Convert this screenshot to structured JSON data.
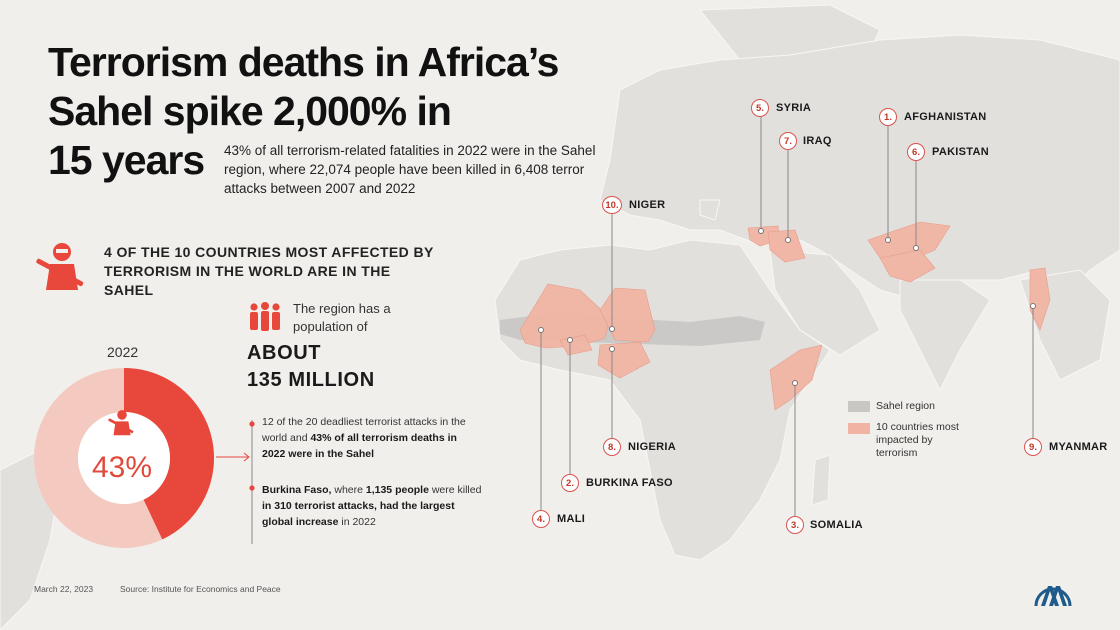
{
  "title": {
    "line1": "Terrorism deaths in Africa’s",
    "line2": "Sahel spike 2,000% in",
    "line3": "15 years"
  },
  "subtitle": "43% of all terrorism-related fatalities in 2022 were in the Sahel region, where 22,074 people have been killed in 6,408 terror attacks between 2007 and 2022",
  "headline": "4 OF THE 10 COUNTRIES MOST AFFECTED BY TERRORISM IN THE WORLD ARE IN THE SAHEL",
  "population": {
    "intro": "The region has a population of",
    "line1": "ABOUT",
    "line2": "135 MILLION"
  },
  "donut": {
    "year": "2022",
    "percent_label": "43%",
    "share": 0.43,
    "color_highlight": "#e8473b",
    "color_rest": "#f3c9c0"
  },
  "facts": [
    {
      "parts": [
        {
          "text": "12 of the 20 deadliest terrorist attacks in the world and ",
          "bold": false
        },
        {
          "text": "43% of all terrorism deaths in 2022 were in the Sahel",
          "bold": true
        }
      ]
    },
    {
      "parts": [
        {
          "text": "Burkina Faso,",
          "bold": true
        },
        {
          "text": " where ",
          "bold": false
        },
        {
          "text": "1,135 people",
          "bold": true
        },
        {
          "text": " were killed ",
          "bold": false
        },
        {
          "text": "in 310 terrorist attacks, had the largest global increase",
          "bold": true
        },
        {
          "text": " in 2022",
          "bold": false
        }
      ]
    }
  ],
  "countries": [
    {
      "rank": "1.",
      "name": "AFGHANISTAN"
    },
    {
      "rank": "2.",
      "name": "BURKINA FASO"
    },
    {
      "rank": "3.",
      "name": "SOMALIA"
    },
    {
      "rank": "4.",
      "name": "MALI"
    },
    {
      "rank": "5.",
      "name": "SYRIA"
    },
    {
      "rank": "6.",
      "name": "PAKISTAN"
    },
    {
      "rank": "7.",
      "name": "IRAQ"
    },
    {
      "rank": "8.",
      "name": "NIGERIA"
    },
    {
      "rank": "9.",
      "name": "MYANMAR"
    },
    {
      "rank": "10.",
      "name": "NIGER"
    }
  ],
  "legend": {
    "sahel": "Sahel region",
    "top10": "10 countries most impacted by terrorism",
    "sahel_color": "#c9c7c4",
    "top10_color": "#f1b4a4"
  },
  "footer": {
    "date": "March 22, 2023",
    "source": "Source: Institute for Economics and Peace"
  },
  "colors": {
    "accent": "#e8473b",
    "background": "#f1efec",
    "land": "#e2e0dd"
  }
}
